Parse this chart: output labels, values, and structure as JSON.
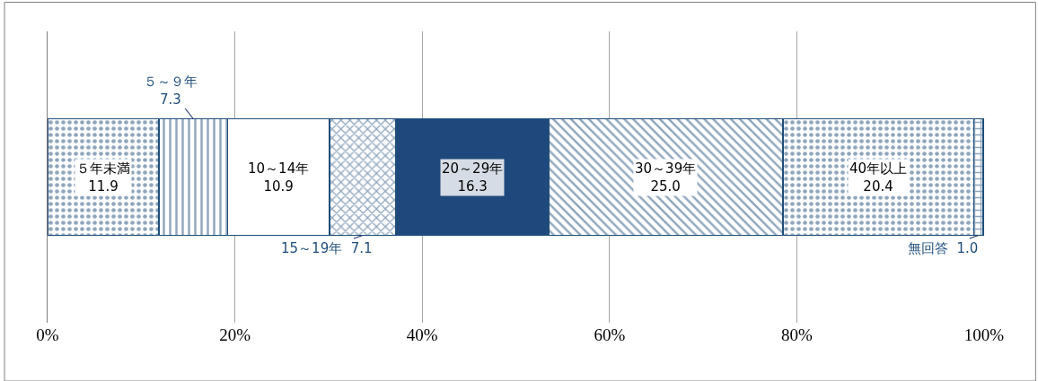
{
  "chart_data": {
    "type": "bar",
    "orientation": "horizontal",
    "stacked": true,
    "categories": [
      null
    ],
    "series": [
      {
        "name": "５年未満",
        "color": "#1f4e79",
        "values": [
          11.9
        ],
        "value_labels": [
          "11.9"
        ]
      },
      {
        "name": "５～９年",
        "color": "#1f4e79",
        "values": [
          7.3
        ],
        "value_labels": [
          "7.3"
        ]
      },
      {
        "name": "10～14年",
        "color": "#ffffff",
        "values": [
          10.9
        ],
        "value_labels": [
          "10.9"
        ]
      },
      {
        "name": "15～19年",
        "color": "#1f4e79",
        "values": [
          7.1
        ],
        "value_labels": [
          "7.1"
        ]
      },
      {
        "name": "20～29年",
        "color": "#1f497d",
        "values": [
          16.3
        ],
        "value_labels": [
          "16.3"
        ]
      },
      {
        "name": "30～39年",
        "color": "#1f4e79",
        "values": [
          25.0
        ],
        "value_labels": [
          "25.0"
        ]
      },
      {
        "name": "40年以上",
        "color": "#1f4e79",
        "values": [
          20.4
        ],
        "value_labels": [
          "20.4"
        ]
      },
      {
        "name": "無回答",
        "color": "#1f4e79",
        "values": [
          1.0
        ],
        "value_labels": [
          "1.0"
        ]
      }
    ],
    "xlim": [
      0,
      100
    ],
    "xticks": [
      {
        "value": 0,
        "label": "0%"
      },
      {
        "value": 20,
        "label": "20%"
      },
      {
        "value": 40,
        "label": "40%"
      },
      {
        "value": 60,
        "label": "60%"
      },
      {
        "value": 80,
        "label": "80%"
      },
      {
        "value": 100,
        "label": "100%"
      }
    ],
    "grid": "x",
    "legend": false
  }
}
